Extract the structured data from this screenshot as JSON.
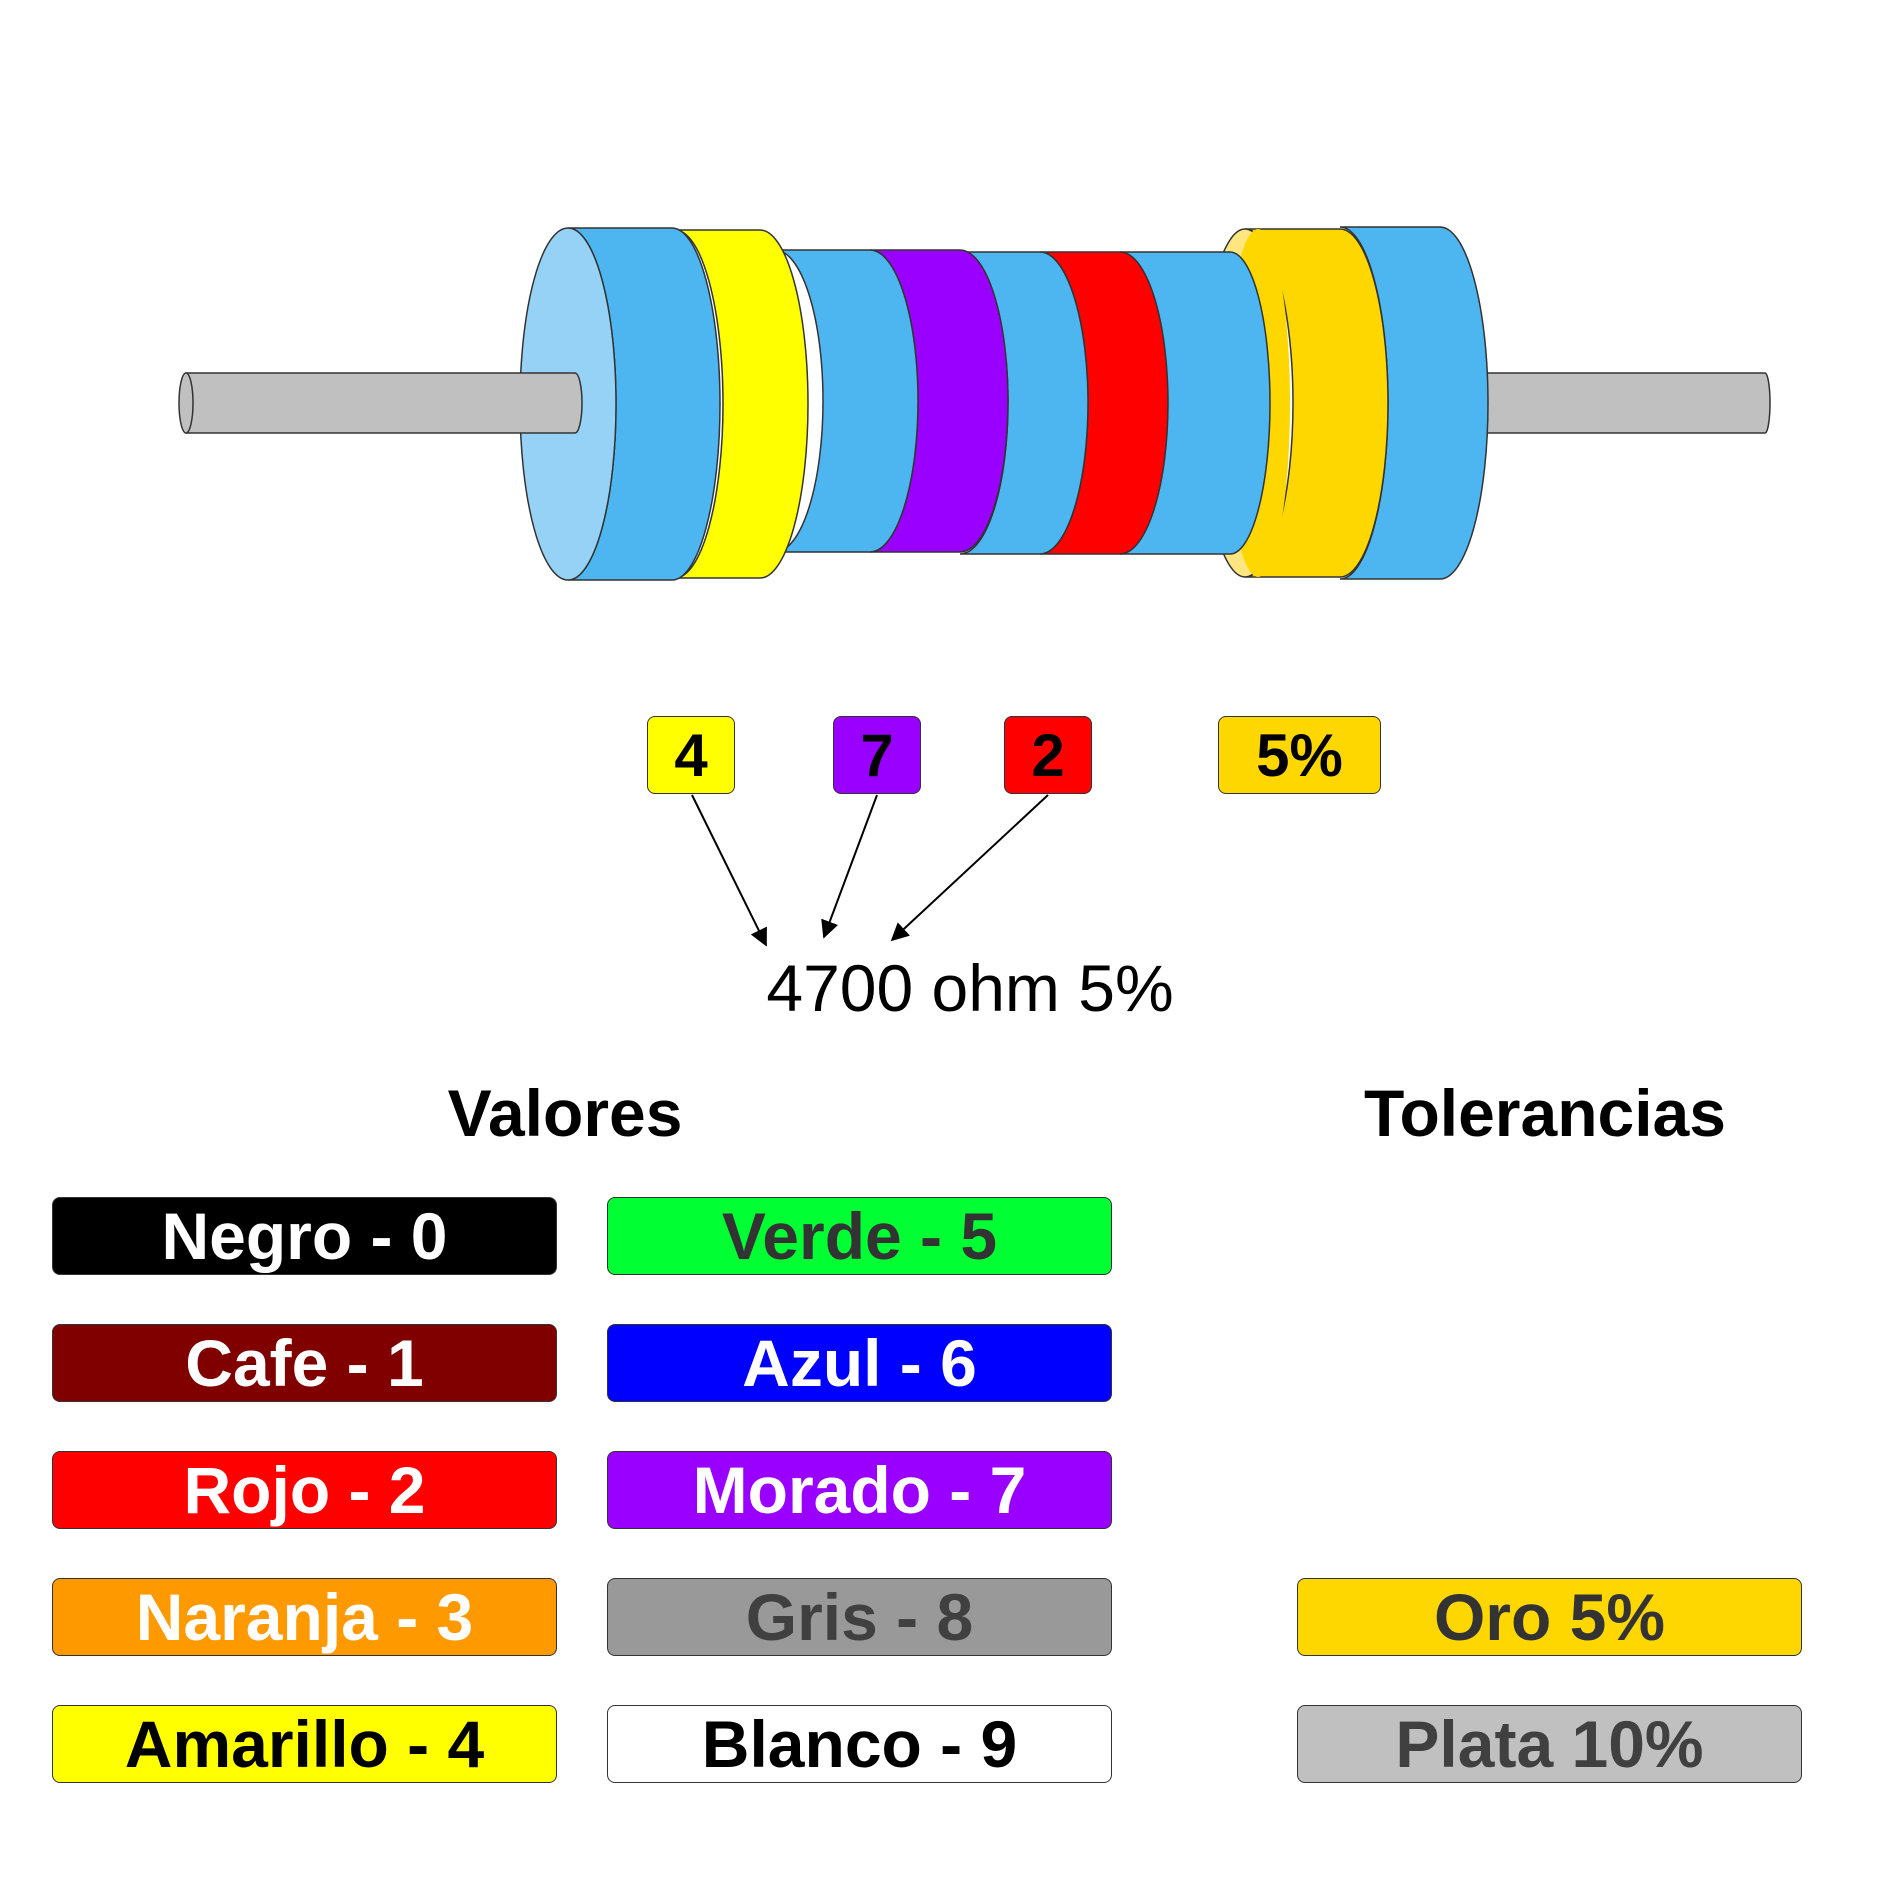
{
  "digit_tags": [
    {
      "label": "4",
      "color": "#FFFF00"
    },
    {
      "label": "7",
      "color": "#9900FF"
    },
    {
      "label": "2",
      "color": "#FF0000"
    },
    {
      "label": "5%",
      "color": "#FFD700"
    }
  ],
  "result_text": "4700 ohm 5%",
  "headings": {
    "values": "Valores",
    "tolerances": "Tolerancias"
  },
  "values_legend": [
    {
      "label": "Negro - 0",
      "bg": "#000000",
      "fg": "#FFFFFF"
    },
    {
      "label": "Cafe - 1",
      "bg": "#800000",
      "fg": "#FFFFFF"
    },
    {
      "label": "Rojo - 2",
      "bg": "#FF0000",
      "fg": "#FFFFFF"
    },
    {
      "label": "Naranja - 3",
      "bg": "#FF9900",
      "fg": "#FFFFFF"
    },
    {
      "label": "Amarillo - 4",
      "bg": "#FFFF00",
      "fg": "#000000"
    },
    {
      "label": "Verde - 5",
      "bg": "#00FF33",
      "fg": "#333333"
    },
    {
      "label": "Azul - 6",
      "bg": "#0000FF",
      "fg": "#FFFFFF"
    },
    {
      "label": "Morado - 7",
      "bg": "#9900FF",
      "fg": "#FFFFFF"
    },
    {
      "label": "Gris - 8",
      "bg": "#999999",
      "fg": "#404040"
    },
    {
      "label": "Blanco - 9",
      "bg": "#FFFFFF",
      "fg": "#000000"
    }
  ],
  "tolerance_legend": [
    {
      "label": "Oro 5%",
      "bg": "#FFD700",
      "fg": "#333333"
    },
    {
      "label": "Plata 10%",
      "bg": "#C0C0C0",
      "fg": "#404040"
    }
  ],
  "colors": {
    "body": "#4DB5F0",
    "body_face": "#96D2F5",
    "lead": "#C0C0C0",
    "band_1": "#FFFF00",
    "band_2": "#9900FF",
    "band_3": "#FF0000",
    "band_4": "#FFD700",
    "band_4_face": "#FFE680"
  }
}
